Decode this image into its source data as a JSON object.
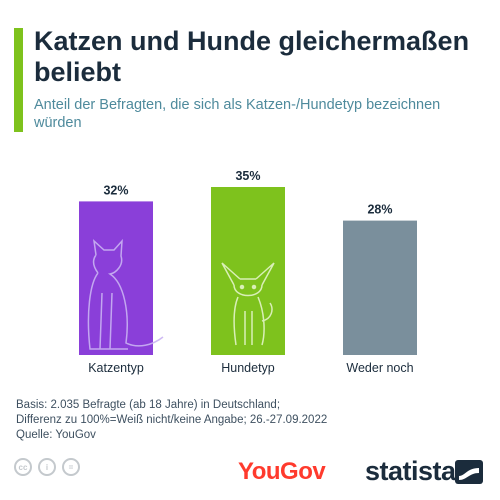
{
  "title": "Katzen und Hunde gleichermaßen beliebt",
  "subtitle": "Anteil der Befragten, die sich als Katzen-/Hundetyp bezeichnen würden",
  "chart_data": {
    "type": "bar",
    "categories": [
      "Katzentyp",
      "Hundetyp",
      "Weder noch"
    ],
    "values": [
      32,
      35,
      28
    ],
    "value_labels": [
      "32%",
      "35%",
      "28%"
    ],
    "colors": [
      "#8a3fd9",
      "#7ec21d",
      "#7a8f9c"
    ],
    "icons": [
      "cat-silhouette",
      "chihuahua-silhouette",
      ""
    ],
    "grid": false,
    "legend": "none"
  },
  "footer": {
    "basis": "Basis: 2.035 Befragte (ab 18 Jahre) in Deutschland;",
    "difference": "Differenz zu 100%=Weiß nicht/keine Angabe; 26.-27.09.2022",
    "source": "Quelle: YouGov"
  },
  "license_icons": [
    "cc-icon",
    "by-icon",
    "nd-icon"
  ],
  "license_labels": [
    "cc",
    "i",
    "="
  ],
  "logos": {
    "yougov": "YouGov",
    "statista": "statista"
  }
}
